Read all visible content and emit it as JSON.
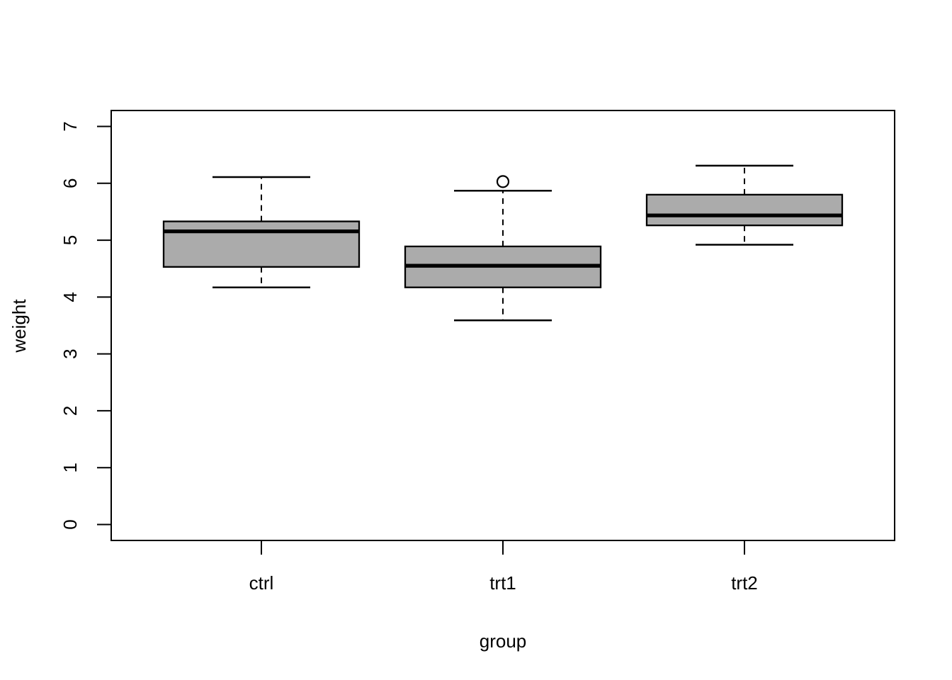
{
  "figure": {
    "background": "#ffffff"
  },
  "chart_data": {
    "type": "boxplot",
    "title": "",
    "xlabel": "group",
    "ylabel": "weight",
    "categories": [
      "ctrl",
      "trt1",
      "trt2"
    ],
    "y_ticks": [
      0,
      1,
      2,
      3,
      4,
      5,
      6,
      7
    ],
    "ylim": [
      -0.28,
      7.28
    ],
    "grid": false,
    "legend": "none",
    "series": [
      {
        "name": "ctrl",
        "whisker_low": 4.17,
        "q1": 4.53,
        "median": 5.155,
        "q3": 5.33,
        "whisker_high": 6.11,
        "outliers": []
      },
      {
        "name": "trt1",
        "whisker_low": 3.59,
        "q1": 4.17,
        "median": 4.55,
        "q3": 4.89,
        "whisker_high": 5.87,
        "outliers": [
          6.03
        ]
      },
      {
        "name": "trt2",
        "whisker_low": 4.92,
        "q1": 5.26,
        "median": 5.435,
        "q3": 5.8,
        "whisker_high": 6.31,
        "outliers": []
      }
    ],
    "colors": {
      "box_fill": "#ABABAB",
      "stroke": "#000000",
      "outlier_fill": "#ffffff",
      "background": "#ffffff"
    }
  }
}
